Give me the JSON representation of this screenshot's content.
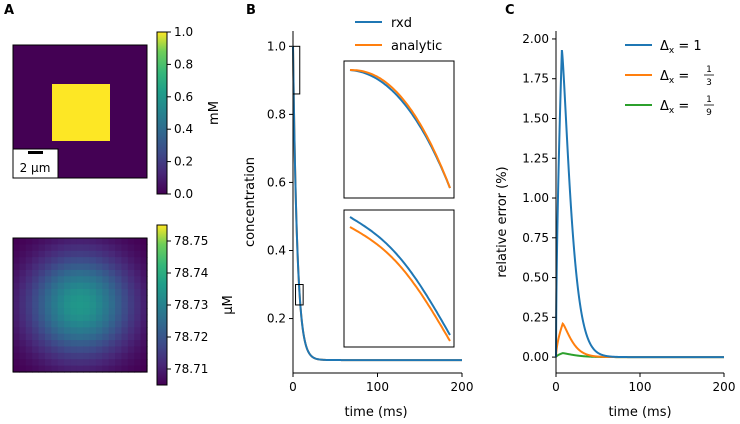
{
  "panels": {
    "A": {
      "label": "A",
      "top_image": {
        "colorbar": {
          "ticks": [
            "1.0",
            "0.8",
            "0.6",
            "0.4",
            "0.2",
            "0.0"
          ],
          "label": "mM",
          "range": [
            0,
            1
          ]
        },
        "scalebar_label": "2 μm",
        "background_value": 0.0,
        "square_value": 1.0,
        "colors": {
          "low": "#440154",
          "high": "#fde725"
        }
      },
      "bottom_image": {
        "colorbar": {
          "ticks": [
            "78.75",
            "78.74",
            "78.73",
            "78.72",
            "78.71"
          ],
          "label": "μM",
          "range": [
            78.705,
            78.755
          ]
        },
        "center_value": 78.735,
        "corner_value": 78.705
      }
    },
    "B": {
      "label": "B"
    },
    "C": {
      "label": "C"
    }
  },
  "chart_data": [
    {
      "id": "B",
      "type": "line",
      "xlabel": "time (ms)",
      "ylabel": "concentration",
      "xlim": [
        0,
        200
      ],
      "ylim": [
        0.04,
        1.045
      ],
      "xticks": [
        0,
        100,
        200
      ],
      "yticks": [
        0.2,
        0.4,
        0.6,
        0.8,
        1.0
      ],
      "ytick_labels": [
        "0.2",
        "0.4",
        "0.6",
        "0.8",
        "1.0"
      ],
      "series": [
        {
          "name": "rxd",
          "color": "#1f77b4",
          "decay_tau_ms": 5.0,
          "plateau": 0.078
        },
        {
          "name": "analytic",
          "color": "#ff7f0e",
          "decay_tau_ms": 5.0,
          "plateau": 0.078
        }
      ],
      "zoom_boxes": [
        {
          "x": [
            0,
            8
          ],
          "y": [
            0.86,
            1.0
          ]
        },
        {
          "x": [
            3,
            12
          ],
          "y": [
            0.24,
            0.3
          ]
        }
      ]
    },
    {
      "id": "C",
      "type": "line",
      "xlabel": "time (ms)",
      "ylabel": "relative error (%)",
      "xlim": [
        0,
        200
      ],
      "ylim": [
        -0.1,
        2.05
      ],
      "xticks": [
        0,
        100,
        200
      ],
      "yticks": [
        0.0,
        0.25,
        0.5,
        0.75,
        1.0,
        1.25,
        1.5,
        1.75,
        2.0
      ],
      "ytick_labels": [
        "0.00",
        "0.25",
        "0.50",
        "0.75",
        "1.00",
        "1.25",
        "1.50",
        "1.75",
        "2.00"
      ],
      "series": [
        {
          "name": "Δx = 1",
          "legend_prefix": "Δ",
          "legend_sub": "x",
          "legend_rhs": "1",
          "color": "#1f77b4",
          "peak": 1.93,
          "peak_time_ms": 7,
          "decay_tau_ms": 14
        },
        {
          "name": "Δx = 1/3",
          "legend_prefix": "Δ",
          "legend_sub": "x",
          "legend_num": "1",
          "legend_den": "3",
          "color": "#ff7f0e",
          "peak": 0.21,
          "peak_time_ms": 8,
          "decay_tau_ms": 14
        },
        {
          "name": "Δx = 1/9",
          "legend_prefix": "Δ",
          "legend_sub": "x",
          "legend_num": "1",
          "legend_den": "9",
          "color": "#2ca02c",
          "peak": 0.025,
          "peak_time_ms": 8,
          "decay_tau_ms": 18
        }
      ]
    }
  ]
}
